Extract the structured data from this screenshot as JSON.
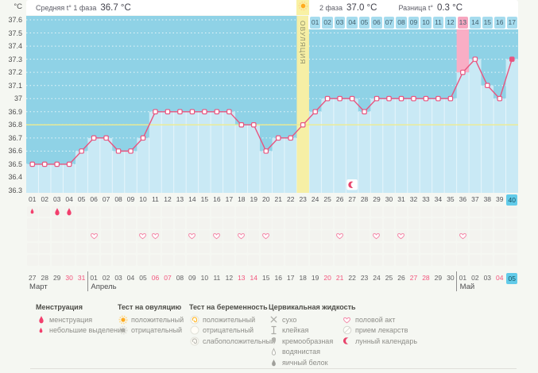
{
  "header": {
    "phase1_label": "Средняя t° 1 фаза",
    "phase1_value": "36.7 °C",
    "phase2_label": "2 фаза",
    "phase2_value": "37.0 °C",
    "diff_label": "Разница t°",
    "diff_value": "0.3 °C"
  },
  "chart": {
    "unit": "°C",
    "ovulation_label": "ОВУЛЯЦИЯ"
  },
  "chart_data": {
    "type": "line",
    "title": "График базальной температуры",
    "ylabel": "°C",
    "ylim": [
      36.3,
      37.6
    ],
    "ytick_step": 0.1,
    "ytick_labels": [
      "37.6",
      "37.5",
      "37.4",
      "37.3",
      "37.2",
      "37.1",
      "37",
      "36.9",
      "36.8",
      "36.7",
      "36.6",
      "36.5",
      "36.4",
      "36.3"
    ],
    "day_labels": [
      "01",
      "02",
      "03",
      "04",
      "05",
      "06",
      "07",
      "08",
      "09",
      "10",
      "11",
      "12",
      "13",
      "14",
      "15",
      "16",
      "17",
      "18",
      "19",
      "20",
      "21",
      "22",
      "23",
      "24",
      "25",
      "26",
      "27",
      "28",
      "29",
      "30",
      "31",
      "32",
      "33",
      "34",
      "35",
      "36",
      "37",
      "38",
      "39",
      "40"
    ],
    "temperatures": [
      36.5,
      36.5,
      36.5,
      36.5,
      36.6,
      36.7,
      36.7,
      36.6,
      36.6,
      36.7,
      36.9,
      36.9,
      36.9,
      36.9,
      36.9,
      36.9,
      36.9,
      36.8,
      36.8,
      36.6,
      36.7,
      36.7,
      36.8,
      36.9,
      37.0,
      37.0,
      37.0,
      36.9,
      37.0,
      37.0,
      37.0,
      37.0,
      37.0,
      37.0,
      37.0,
      37.2,
      37.3,
      37.1,
      37.0,
      37.3
    ],
    "coverline": 36.8,
    "ovulation_day": 23,
    "phase2_start_day": 24,
    "phase2_day_labels": [
      "01",
      "02",
      "03",
      "04",
      "05",
      "06",
      "07",
      "08",
      "09",
      "10",
      "11",
      "12",
      "13",
      "14",
      "15",
      "16",
      "17"
    ],
    "highlighted_phase2_day": "13",
    "highlighted_day": 36,
    "today_day": 40,
    "lunar_calendar_day": 27,
    "grid_rows": 5,
    "events": {
      "spotting_days": [
        1
      ],
      "menstruation_days": [
        3,
        4
      ],
      "intercourse_days": [
        6,
        10,
        11,
        14,
        16,
        18,
        20,
        26,
        29,
        31,
        36
      ]
    }
  },
  "calendar": {
    "months": [
      {
        "name": "Март",
        "dates": [
          "27",
          "28",
          "29",
          "30",
          "31"
        ],
        "weekend_dates": [
          "30",
          "31"
        ]
      },
      {
        "name": "Апрель",
        "dates": [
          "01",
          "02",
          "03",
          "04",
          "05",
          "06",
          "07",
          "08",
          "09",
          "10",
          "11",
          "12",
          "13",
          "14",
          "15",
          "16",
          "17",
          "18",
          "19",
          "20",
          "21",
          "22",
          "23",
          "24",
          "25",
          "26",
          "27",
          "28",
          "29",
          "30"
        ],
        "weekend_dates": [
          "06",
          "07",
          "13",
          "14",
          "20",
          "21",
          "27",
          "28"
        ]
      },
      {
        "name": "Май",
        "dates": [
          "01",
          "02",
          "03",
          "04",
          "05"
        ],
        "weekend_dates": [
          "04"
        ],
        "today_date": "05"
      }
    ]
  },
  "legend": {
    "sections": [
      {
        "title": "Менструация",
        "items": [
          {
            "icon": "menstruation-large",
            "label": "менструация"
          },
          {
            "icon": "menstruation-small",
            "label": "небольшие выделения"
          }
        ]
      },
      {
        "title": "Тест на овуляцию",
        "items": [
          {
            "icon": "ovulation-positive",
            "label": "положительный"
          },
          {
            "icon": "ovulation-negative",
            "label": "отрицательный"
          }
        ]
      },
      {
        "title": "Тест на беременность",
        "items": [
          {
            "icon": "pregnancy-positive",
            "label": "положительный"
          },
          {
            "icon": "pregnancy-negative",
            "label": "отрицательный"
          },
          {
            "icon": "pregnancy-weak-positive",
            "label": "слабоположительный"
          }
        ]
      },
      {
        "title": "Цервикальная жидкость",
        "items": [
          {
            "icon": "cf-dry",
            "label": "сухо"
          },
          {
            "icon": "cf-sticky",
            "label": "клейкая"
          },
          {
            "icon": "cf-creamy",
            "label": "кремообразная"
          },
          {
            "icon": "cf-watery",
            "label": "водянистая"
          },
          {
            "icon": "cf-eggwhite",
            "label": "яичный белок"
          }
        ]
      },
      {
        "title": "",
        "items": [
          {
            "icon": "heart",
            "label": "половой акт"
          },
          {
            "icon": "pill",
            "label": "прием лекарств"
          },
          {
            "icon": "moon",
            "label": "лунный календарь"
          }
        ]
      }
    ]
  },
  "colors": {
    "line": "#e8547f",
    "chart_upper": "#8fd2e6",
    "chart_lower": "#c9e9f5",
    "column_separator": "#e6f5fb",
    "ovulation_band": "#f6efa5",
    "coverline": "#eeeb8f",
    "highlight_pink": "#f9aec5",
    "phase2_cell_blue": "#a6dcee",
    "today_cyan": "#62cbe9",
    "weekend_red": "#f2557d",
    "drop_red": "#f23f6d",
    "heart_pink": "#f387a7",
    "sun_orange": "#ffaa1f",
    "moon_red": "#e8436b"
  }
}
